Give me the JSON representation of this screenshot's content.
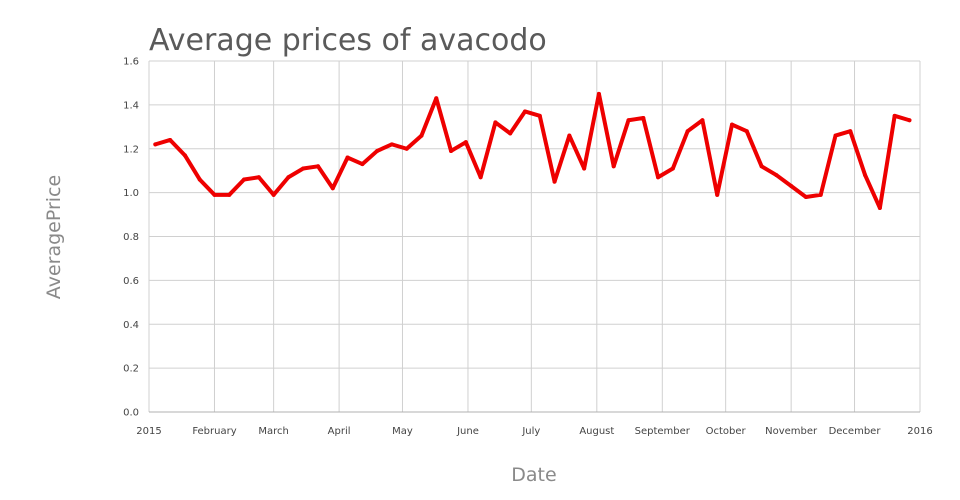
{
  "chart_data": {
    "type": "line",
    "title": "Average prices of avacodo",
    "xlabel": "Date",
    "ylabel": "AveragePrice",
    "x_ticks": [
      "2015",
      "February",
      "March",
      "April",
      "May",
      "June",
      "July",
      "August",
      "September",
      "October",
      "November",
      "December",
      "2016"
    ],
    "y_ticks": [
      "0.0",
      "0.2",
      "0.4",
      "0.6",
      "0.8",
      "1.0",
      "1.2",
      "1.4",
      "1.6"
    ],
    "ylim": [
      0,
      1.6
    ],
    "xlim": [
      "2015-01-01",
      "2016-01-01"
    ],
    "grid": true,
    "series": [
      {
        "color": "#ee0000",
        "x": [
          "2015-01-04",
          "2015-01-11",
          "2015-01-18",
          "2015-01-25",
          "2015-02-01",
          "2015-02-08",
          "2015-02-15",
          "2015-02-22",
          "2015-03-01",
          "2015-03-08",
          "2015-03-15",
          "2015-03-22",
          "2015-03-29",
          "2015-04-05",
          "2015-04-12",
          "2015-04-19",
          "2015-04-26",
          "2015-05-03",
          "2015-05-10",
          "2015-05-17",
          "2015-05-24",
          "2015-05-31",
          "2015-06-07",
          "2015-06-14",
          "2015-06-21",
          "2015-06-28",
          "2015-07-05",
          "2015-07-12",
          "2015-07-19",
          "2015-07-26",
          "2015-08-02",
          "2015-08-09",
          "2015-08-16",
          "2015-08-23",
          "2015-08-30",
          "2015-09-06",
          "2015-09-13",
          "2015-09-20",
          "2015-09-27",
          "2015-10-04",
          "2015-10-11",
          "2015-10-18",
          "2015-10-25",
          "2015-11-01",
          "2015-11-08",
          "2015-11-15",
          "2015-11-22",
          "2015-11-29",
          "2015-12-06",
          "2015-12-13",
          "2015-12-20",
          "2015-12-27"
        ],
        "values": [
          1.22,
          1.24,
          1.17,
          1.06,
          0.99,
          0.99,
          1.06,
          1.07,
          0.99,
          1.07,
          1.11,
          1.12,
          1.02,
          1.16,
          1.13,
          1.19,
          1.22,
          1.2,
          1.26,
          1.43,
          1.19,
          1.23,
          1.07,
          1.32,
          1.27,
          1.37,
          1.35,
          1.05,
          1.26,
          1.11,
          1.45,
          1.12,
          1.33,
          1.34,
          1.07,
          1.11,
          1.28,
          1.33,
          0.99,
          1.31,
          1.28,
          1.12,
          1.08,
          1.03,
          0.98,
          0.99,
          1.26,
          1.28,
          1.08,
          0.93,
          1.35,
          1.33
        ]
      }
    ]
  }
}
